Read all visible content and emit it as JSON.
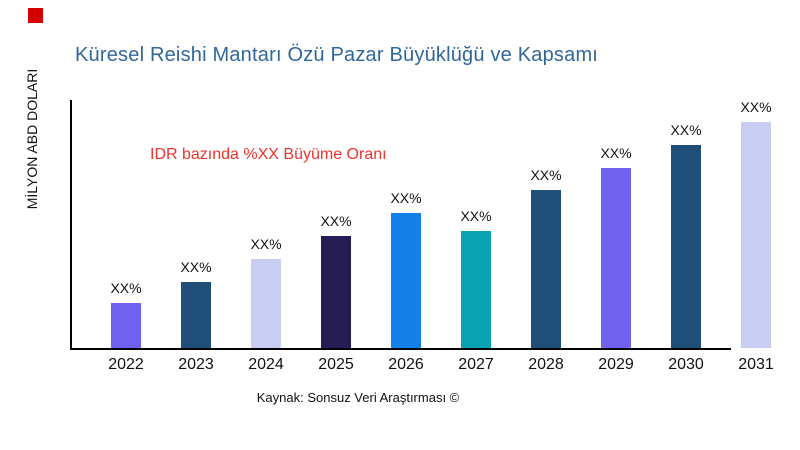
{
  "colors": {
    "background": "#ffffff",
    "title": "#31669b",
    "annotation": "#ea332d",
    "axis": "#000000",
    "text": "#111111",
    "marker": "#d40000"
  },
  "header": {
    "title": "Küresel Reishi Mantarı Özü Pazar Büyüklüğü ve Kapsamı"
  },
  "annotation": {
    "text": "IDR bazında %XX Büyüme Oranı"
  },
  "footer": {
    "source": "Kaynak: Sonsuz Veri Araştırması ©"
  },
  "chart_data": {
    "type": "bar",
    "title": "Küresel Reishi Mantarı Özü Pazar Büyüklüğü ve Kapsamı",
    "xlabel": "",
    "ylabel": "MİLYON ABD DOLARI",
    "categories": [
      "2022",
      "2023",
      "2024",
      "2025",
      "2026",
      "2027",
      "2028",
      "2029",
      "2030",
      "2031"
    ],
    "values": [
      45,
      66,
      89,
      112,
      135,
      117,
      158,
      180,
      203,
      226
    ],
    "values_unit": "relative-bar-height-px (numeric values masked in source chart)",
    "value_labels": [
      "XX%",
      "XX%",
      "XX%",
      "XX%",
      "XX%",
      "XX%",
      "XX%",
      "XX%",
      "XX%",
      "XX%"
    ],
    "bar_colors": [
      "#7161ef",
      "#1f4e79",
      "#c9cdf2",
      "#251d54",
      "#1480e8",
      "#0aa3b4",
      "#1f4e79",
      "#7161ef",
      "#1f4e79",
      "#c9cdf2"
    ],
    "grid": false,
    "legend": false
  }
}
